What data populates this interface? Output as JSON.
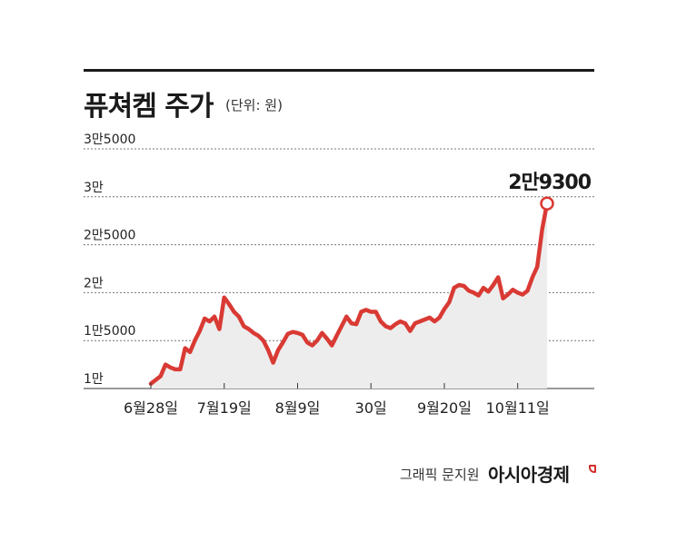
{
  "header": {
    "title": "퓨쳐켐 주가",
    "unit": "(단위: 원)"
  },
  "footer": {
    "credit": "그래픽 문지원",
    "brand": "아시아경제"
  },
  "colors": {
    "line": "#d93a34",
    "area": "#ededed",
    "grid": "#777777",
    "text": "#222222",
    "accent": "#d32f2f"
  },
  "chart_data": {
    "type": "line",
    "title": "퓨쳐켐 주가",
    "ylabel": "(단위: 원)",
    "ylim": [
      10000,
      35000
    ],
    "yticks": [
      {
        "value": 35000,
        "label": "3만5000"
      },
      {
        "value": 30000,
        "label": "3만"
      },
      {
        "value": 25000,
        "label": "2만5000"
      },
      {
        "value": 20000,
        "label": "2만"
      },
      {
        "value": 15000,
        "label": "1만5000"
      },
      {
        "value": 10000,
        "label": "1만"
      }
    ],
    "xticks": [
      {
        "index": 0,
        "label": "6월28일"
      },
      {
        "index": 15,
        "label": "7월19일"
      },
      {
        "index": 30,
        "label": "8월9일"
      },
      {
        "index": 45,
        "label": "30일"
      },
      {
        "index": 60,
        "label": "9월20일"
      },
      {
        "index": 75,
        "label": "10월11일"
      }
    ],
    "grid": true,
    "series": [
      {
        "values": [
          10500,
          10900,
          11300,
          12500,
          12200,
          12000,
          12000,
          14200,
          13800,
          15000,
          16000,
          17300,
          17000,
          17500,
          16200,
          19500,
          18800,
          18000,
          17500,
          16500,
          16200,
          15800,
          15500,
          15000,
          14000,
          12700,
          14000,
          14800,
          15700,
          15900,
          15800,
          15600,
          14800,
          14500,
          15000,
          15800,
          15200,
          14500,
          15500,
          16500,
          17500,
          16800,
          16700,
          18000,
          18200,
          18000,
          18000,
          17000,
          16500,
          16300,
          16700,
          17000,
          16800,
          16000,
          16800,
          17000,
          17200,
          17400,
          17000,
          17400,
          18300,
          19000,
          20500,
          20800,
          20700,
          20200,
          20000,
          19700,
          20500,
          20100,
          20800,
          21600,
          19400,
          19800,
          20300,
          20000,
          19800,
          20200,
          21600,
          22700,
          26600,
          29300
        ],
        "last_label": "2만9300"
      }
    ]
  }
}
